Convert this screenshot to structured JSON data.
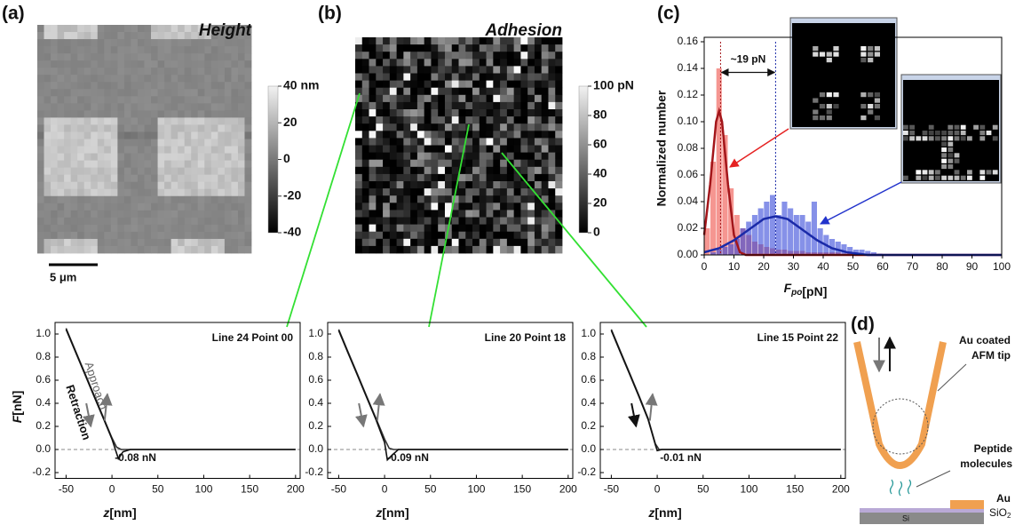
{
  "panels": {
    "a": {
      "label": "(a)",
      "title": "Height",
      "scale_bar": "5 μm",
      "colorbar": {
        "lim": [
          -40,
          40
        ],
        "ticks": [
          {
            "value": 40,
            "label": "40 nm"
          },
          20,
          0,
          -20,
          -40
        ]
      }
    },
    "b": {
      "label": "(b)",
      "title": "Adhesion",
      "colorbar": {
        "lim": [
          0,
          100
        ],
        "ticks": [
          {
            "value": 100,
            "label": "100 pN"
          },
          80,
          60,
          40,
          20,
          0
        ]
      }
    },
    "c": {
      "label": "(c)"
    },
    "d": {
      "label": "(d)",
      "tip_label": [
        "Au coated",
        "AFM tip"
      ],
      "molecule_label": [
        "Peptide",
        "molecules"
      ],
      "au_label": "Au",
      "sio2_label": {
        "base": "SiO",
        "subscript": "2"
      },
      "si_label": "Si"
    }
  },
  "chart_data": [
    {
      "type": "histogram",
      "y_label": "Normalized number",
      "x_label": {
        "symbol": "F",
        "subscript": "po",
        "unit": "[pN]"
      },
      "xlim": [
        0,
        100
      ],
      "xticks": [
        0,
        10,
        20,
        30,
        40,
        50,
        60,
        70,
        80,
        90,
        100
      ],
      "ylim": [
        0,
        0.16
      ],
      "yticks": [
        {
          "value": 0,
          "label": "0.00"
        },
        {
          "value": 0.02,
          "label": "0.02"
        },
        {
          "value": 0.04,
          "label": "0.04"
        },
        {
          "value": 0.06,
          "label": "0.06"
        },
        {
          "value": 0.08,
          "label": "0.08"
        },
        {
          "value": 0.1,
          "label": "0.10"
        },
        {
          "value": 0.12,
          "label": "0.12"
        },
        {
          "value": 0.14,
          "label": "0.14"
        },
        {
          "value": 0.16,
          "label": "0.16"
        }
      ],
      "bins": [
        0,
        2,
        4,
        6,
        8,
        10,
        12,
        14,
        16,
        18,
        20,
        22,
        24,
        26,
        28,
        30,
        32,
        34,
        36,
        38,
        40,
        42,
        44,
        46,
        48,
        50,
        52,
        54,
        56,
        58,
        60
      ],
      "series": [
        {
          "color": "#ee5048",
          "values": [
            0.02,
            0.07,
            0.14,
            0.09,
            0.05,
            0.03,
            0.02,
            0.015,
            0.01,
            0.008,
            0.006,
            0.005,
            0.004,
            0.004,
            0.003,
            0.003,
            0.003,
            0.002,
            0.002,
            0.002,
            0.002,
            0.002,
            0.002,
            0.001,
            0.002,
            0.001,
            0.001,
            0.001,
            0.001,
            0.001
          ]
        },
        {
          "color": "#3548d8",
          "values": [
            0,
            0.002,
            0.004,
            0.006,
            0.008,
            0.012,
            0.02,
            0.025,
            0.03,
            0.035,
            0.04,
            0.045,
            0.03,
            0.04,
            0.035,
            0.03,
            0.03,
            0.025,
            0.04,
            0.02,
            0.015,
            0.012,
            0.01,
            0.008,
            0.006,
            0.004,
            0.004,
            0.003,
            0.002,
            0.001
          ]
        }
      ],
      "curves": [
        {
          "color": "#a3161a",
          "x": [
            0,
            2,
            4,
            5,
            6,
            8,
            10,
            12,
            14,
            20,
            100
          ],
          "values": [
            0.015,
            0.053,
            0.1,
            0.108,
            0.1,
            0.053,
            0.015,
            0.002,
            0,
            0,
            0
          ]
        },
        {
          "color": "#1a2aa8",
          "x": [
            0,
            5,
            10,
            15,
            20,
            24,
            28,
            33,
            38,
            43,
            48,
            55,
            100
          ],
          "values": [
            0.002,
            0.005,
            0.011,
            0.019,
            0.027,
            0.029,
            0.027,
            0.019,
            0.011,
            0.005,
            0.002,
            0,
            0
          ]
        }
      ],
      "vlines": [
        {
          "x": 5.5,
          "color": "#a3161a"
        },
        {
          "x": 24,
          "color": "#1a2aa8"
        }
      ],
      "annotation": "~19 pN"
    },
    {
      "type": "line",
      "annotation": "Line 24 Point 00",
      "min_label": "-0.08 nN",
      "x_label": {
        "symbol": "z",
        "unit": "[nm]"
      },
      "y_label": {
        "symbol": "F",
        "unit": "[nN]"
      },
      "xlim": [
        -62,
        205
      ],
      "xticks": [
        -50,
        0,
        50,
        100,
        150,
        200
      ],
      "ylim": [
        -0.25,
        1.1
      ],
      "yticks": [
        -0.2,
        {
          "value": 0,
          "label": "0.0"
        },
        0.2,
        0.4,
        0.6,
        0.8,
        {
          "value": 1,
          "label": "1.0"
        }
      ],
      "series": [
        {
          "name": "Approach",
          "color": "#333",
          "x": [
            -50,
            -40,
            -30,
            -20,
            -10,
            0,
            5,
            10,
            30,
            60,
            100,
            150,
            200
          ],
          "values": [
            1.05,
            0.86,
            0.67,
            0.48,
            0.29,
            0.1,
            0.02,
            0,
            0,
            0,
            0,
            0,
            0
          ]
        },
        {
          "name": "Retraction",
          "color": "#111",
          "x": [
            -50,
            -40,
            -30,
            -20,
            -10,
            0,
            7,
            12,
            20,
            60,
            100,
            150,
            200
          ],
          "values": [
            1.04,
            0.85,
            0.66,
            0.47,
            0.28,
            0.09,
            -0.08,
            -0.02,
            0,
            0,
            0,
            0,
            0
          ]
        }
      ]
    },
    {
      "type": "line",
      "annotation": "Line 20 Point 18",
      "min_label": "-0.09 nN",
      "x_label": {
        "symbol": "z",
        "unit": "[nm]"
      },
      "y_label": {
        "symbol": "F",
        "unit": "[nN]"
      },
      "xlim": [
        -62,
        205
      ],
      "xticks": [
        -50,
        0,
        50,
        100,
        150,
        200
      ],
      "ylim": [
        -0.25,
        1.1
      ],
      "yticks": [
        -0.2,
        {
          "value": 0,
          "label": "0.0"
        },
        0.2,
        0.4,
        0.6,
        0.8,
        {
          "value": 1,
          "label": "1.0"
        }
      ],
      "series": [
        {
          "color": "#333",
          "x": [
            -50,
            -40,
            -30,
            -20,
            -10,
            0,
            5,
            10,
            30,
            60,
            100,
            150,
            200
          ],
          "values": [
            1.04,
            0.85,
            0.66,
            0.47,
            0.28,
            0.09,
            0.01,
            0,
            0,
            0,
            0,
            0,
            0
          ]
        },
        {
          "color": "#111",
          "x": [
            -50,
            -40,
            -30,
            -20,
            -10,
            0,
            3,
            8,
            15,
            60,
            100,
            150,
            200
          ],
          "values": [
            1.03,
            0.84,
            0.65,
            0.46,
            0.27,
            0.06,
            -0.09,
            -0.05,
            0,
            0,
            0,
            0,
            0
          ]
        }
      ]
    },
    {
      "type": "line",
      "annotation": "Line 15 Point 22",
      "min_label": "-0.01 nN",
      "x_label": {
        "symbol": "z",
        "unit": "[nm]"
      },
      "y_label": {
        "symbol": "F",
        "unit": "[nN]"
      },
      "xlim": [
        -62,
        205
      ],
      "xticks": [
        -50,
        0,
        50,
        100,
        150,
        200
      ],
      "ylim": [
        -0.25,
        1.1
      ],
      "yticks": [
        -0.2,
        {
          "value": 0,
          "label": "0.0"
        },
        0.2,
        0.4,
        0.6,
        0.8,
        {
          "value": 1,
          "label": "1.0"
        }
      ],
      "series": [
        {
          "color": "#333",
          "x": [
            -50,
            -40,
            -30,
            -20,
            -10,
            -2,
            2,
            30,
            60,
            100,
            150,
            200
          ],
          "values": [
            1.04,
            0.85,
            0.66,
            0.47,
            0.27,
            0.05,
            0,
            0,
            0,
            0,
            0,
            0
          ]
        },
        {
          "color": "#111",
          "x": [
            -50,
            -40,
            -30,
            -20,
            -10,
            -2,
            0,
            5,
            60,
            100,
            150,
            200
          ],
          "values": [
            1.03,
            0.84,
            0.65,
            0.46,
            0.26,
            0.04,
            -0.01,
            0,
            0,
            0,
            0,
            0
          ]
        }
      ]
    }
  ]
}
